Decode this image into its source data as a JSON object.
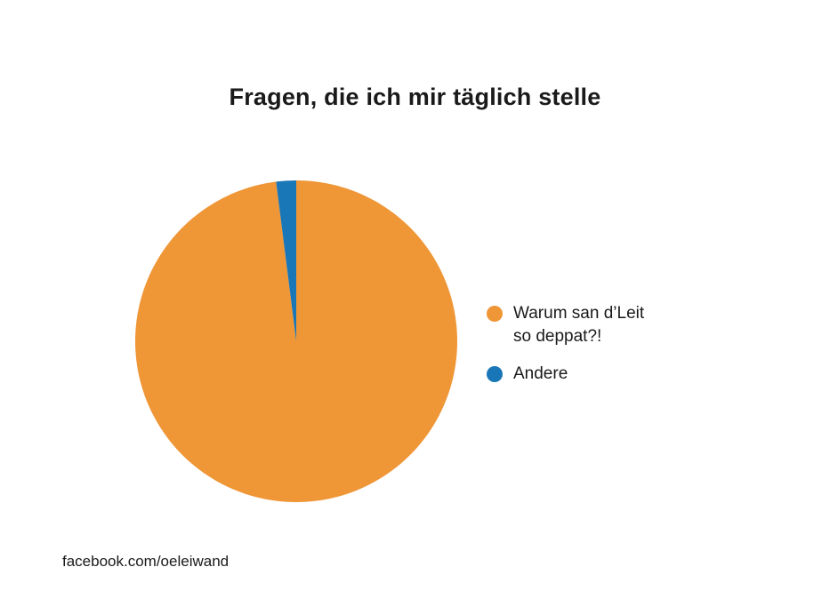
{
  "chart_data": {
    "type": "pie",
    "title": "Fragen, die ich mir täglich stelle",
    "slices": [
      {
        "label": "Warum san d’Leit\nso deppat?!",
        "value": 98,
        "color": "#ef9637"
      },
      {
        "label": "Andere",
        "value": 2,
        "color": "#1a77b7"
      }
    ],
    "legend_position": "right"
  },
  "footer": {
    "credit": "facebook.com/oeleiwand"
  }
}
